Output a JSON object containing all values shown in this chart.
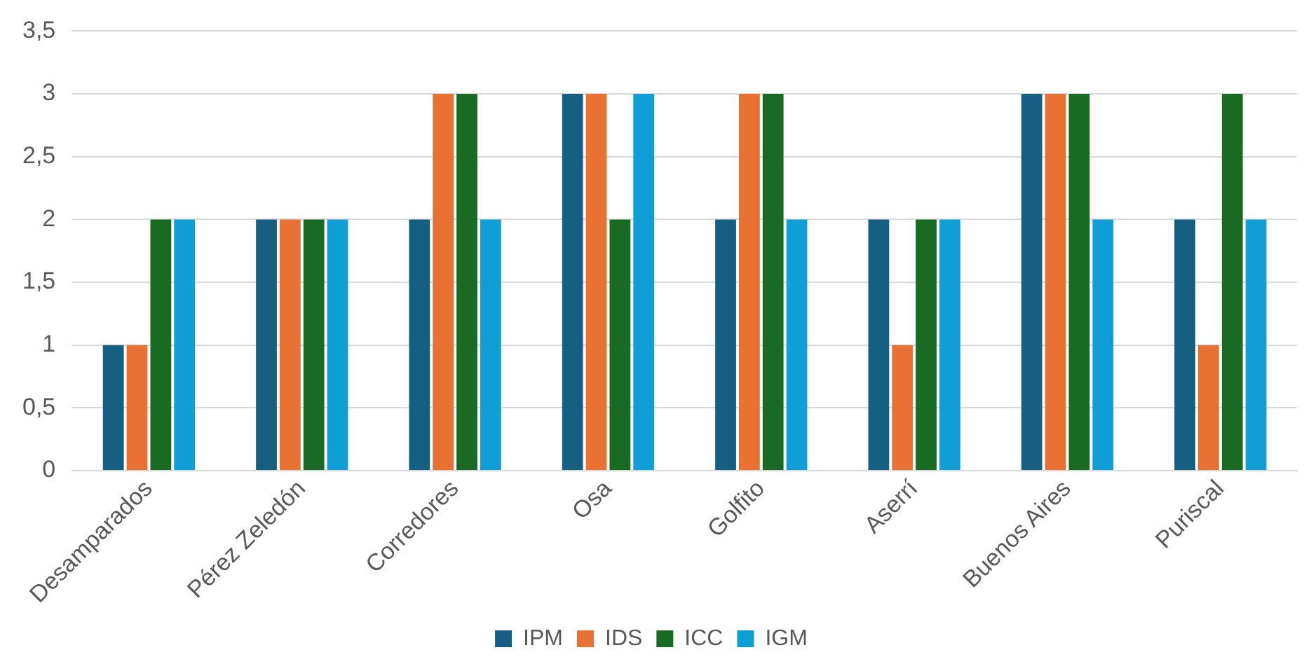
{
  "chart_data": {
    "type": "bar",
    "categories": [
      "Desamparados",
      "Pérez Zeledón",
      "Corredores",
      "Osa",
      "Golfito",
      "Aserrí",
      "Buenos Aires",
      "Puriscal"
    ],
    "series": [
      {
        "name": "IPM",
        "color": "#156082",
        "values": [
          1,
          2,
          2,
          3,
          2,
          2,
          3,
          2
        ]
      },
      {
        "name": "IDS",
        "color": "#e97132",
        "values": [
          1,
          2,
          3,
          3,
          3,
          1,
          3,
          1
        ]
      },
      {
        "name": "ICC",
        "color": "#196b24",
        "values": [
          2,
          2,
          3,
          2,
          3,
          2,
          3,
          3
        ]
      },
      {
        "name": "IGM",
        "color": "#0f9ed5",
        "values": [
          2,
          2,
          2,
          3,
          2,
          2,
          2,
          2
        ]
      }
    ],
    "ylim": [
      0,
      3.5
    ],
    "yticks": [
      0,
      {
        "value": 0.5,
        "label": "0,5"
      },
      1,
      {
        "value": 1.5,
        "label": "1,5"
      },
      2,
      {
        "value": 2.5,
        "label": "2,5"
      },
      3,
      {
        "value": 3.5,
        "label": "3,5"
      }
    ],
    "grid": "y",
    "legend": "bottom"
  }
}
